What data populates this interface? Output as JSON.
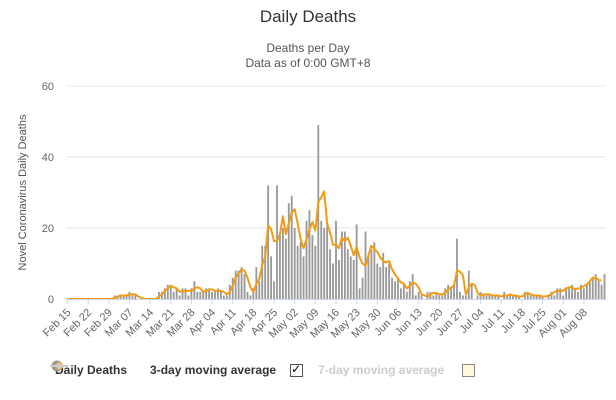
{
  "chart_data": {
    "type": "bar",
    "title": "Daily Deaths",
    "subtitle_lines": [
      "Deaths per Day",
      "Data as of 0:00 GMT+8"
    ],
    "ylabel": "Novel Coronavirus Daily Deaths",
    "ylim": [
      0,
      60
    ],
    "yticks": [
      0,
      20,
      40,
      60
    ],
    "grid": true,
    "x_tick_labels": [
      "Feb 15",
      "Feb 22",
      "Feb 29",
      "Mar 07",
      "Mar 14",
      "Mar 21",
      "Mar 28",
      "Apr 04",
      "Apr 11",
      "Apr 18",
      "Apr 25",
      "May 02",
      "May 09",
      "May 16",
      "May 23",
      "May 30",
      "Jun 06",
      "Jun 13",
      "Jun 20",
      "Jun 27",
      "Jul 04",
      "Jul 11",
      "Jul 18",
      "Jul 25",
      "Aug 01",
      "Aug 08"
    ],
    "x_start": "Feb 15",
    "series": [
      {
        "name": "Daily Deaths",
        "kind": "bar",
        "color": "#999999",
        "values": [
          0,
          0,
          0,
          0,
          0,
          0,
          0,
          0,
          0,
          0,
          0,
          0,
          0,
          0,
          0,
          0,
          1,
          1,
          1,
          1,
          1,
          2,
          1,
          1,
          0,
          0,
          0,
          0,
          0,
          0,
          0,
          2,
          2,
          3,
          4,
          4,
          2,
          3,
          1,
          3,
          3,
          1,
          3,
          5,
          2,
          2,
          2,
          3,
          3,
          2,
          2,
          3,
          2,
          1,
          1,
          4,
          6,
          8,
          8,
          9,
          7,
          2,
          1,
          3,
          9,
          5,
          15,
          15,
          32,
          12,
          5,
          32,
          18,
          20,
          17,
          27,
          29,
          20,
          15,
          16,
          12,
          22,
          25,
          18,
          15,
          49,
          22,
          20,
          22,
          14,
          10,
          22,
          11,
          19,
          19,
          14,
          12,
          11,
          21,
          3,
          6,
          19,
          12,
          14,
          16,
          10,
          9,
          13,
          9,
          10,
          6,
          5,
          6,
          3,
          4,
          2,
          5,
          7,
          1,
          2,
          1,
          0,
          2,
          2,
          1,
          2,
          1,
          1,
          3,
          4,
          3,
          4,
          17,
          2,
          1,
          1,
          8,
          4,
          0,
          1,
          2,
          1,
          1,
          1,
          1,
          1,
          1,
          0,
          2,
          1,
          1,
          1,
          1,
          1,
          0,
          2,
          2,
          1,
          1,
          1,
          1,
          1,
          0,
          1,
          2,
          1,
          3,
          3,
          1,
          3,
          3,
          4,
          3,
          2,
          4,
          3,
          4,
          5,
          6,
          7,
          5,
          4,
          7
        ]
      },
      {
        "name": "3-day moving average",
        "kind": "line",
        "color": "#f39c12",
        "values": [
          0,
          0,
          0,
          0,
          0,
          0,
          0,
          0,
          0,
          0,
          0,
          0,
          0,
          0,
          0,
          0,
          0.3,
          0.7,
          1,
          1,
          1,
          1.3,
          1.3,
          1.3,
          0.7,
          0.3,
          0,
          0,
          0,
          0,
          0,
          0.7,
          1.3,
          2.3,
          3,
          3.7,
          3.3,
          3,
          2,
          2.3,
          2.3,
          2.3,
          2.3,
          3,
          3.3,
          3,
          2,
          2.3,
          2.7,
          2.7,
          2.3,
          2.3,
          2.3,
          2,
          1.3,
          2,
          3.7,
          6,
          7.3,
          8.3,
          8,
          6,
          3.3,
          2,
          4.3,
          5.7,
          9.7,
          11.7,
          20.7,
          19.7,
          16.3,
          16.3,
          18.3,
          23.3,
          18.3,
          21.3,
          24.3,
          25.3,
          21.3,
          17,
          14.3,
          16.7,
          19.7,
          21.7,
          19.3,
          27.3,
          28.7,
          30.3,
          21.3,
          18.7,
          15.3,
          15.3,
          14.3,
          17.3,
          16.3,
          17.3,
          15,
          12.3,
          14.7,
          11.7,
          10,
          9.3,
          12.3,
          15,
          14,
          13.3,
          11.7,
          10.7,
          10.3,
          10.7,
          8.3,
          7,
          5.7,
          4.7,
          4.3,
          3,
          3.7,
          4.7,
          4.3,
          3.3,
          1.3,
          1,
          0.7,
          1.3,
          1.7,
          1.7,
          1.3,
          1.3,
          1.7,
          2.7,
          3.3,
          3.7,
          8,
          7.7,
          6.7,
          1.3,
          3.3,
          4.3,
          4,
          1.7,
          1,
          1.3,
          1.3,
          1.3,
          1,
          1,
          1,
          0.7,
          1,
          1,
          1.3,
          1,
          1,
          0.7,
          0.7,
          1.3,
          1.7,
          1.3,
          1,
          1,
          1,
          0.7,
          0.7,
          1,
          1.3,
          2,
          2.3,
          2.3,
          2.3,
          3,
          3.3,
          3.3,
          2.7,
          3,
          3,
          3.7,
          4,
          5,
          6,
          6,
          5.3,
          5.3
        ]
      },
      {
        "name": "7-day moving average",
        "kind": "line",
        "color": "#cccccc",
        "visible": false
      }
    ]
  },
  "legend": {
    "daily_label": "Daily Deaths",
    "ma3_label": "3-day moving average",
    "ma7_label": "7-day moving average",
    "ma3_checked": true,
    "ma7_checked": false
  }
}
